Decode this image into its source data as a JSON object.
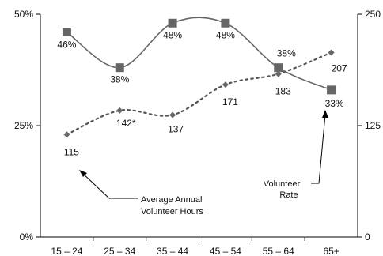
{
  "chart_data": {
    "type": "line",
    "categories": [
      "15 – 24",
      "25 – 34",
      "35 – 44",
      "45 – 54",
      "55 – 64",
      "65+"
    ],
    "y_left": {
      "ticks": [
        "0%",
        "25%",
        "50%"
      ],
      "range": [
        0,
        50
      ]
    },
    "y_right": {
      "ticks": [
        "0",
        "125",
        "250"
      ],
      "range": [
        0,
        250
      ]
    },
    "series": [
      {
        "key": "rate",
        "axis": "left",
        "marker": "square",
        "style": "solid",
        "color": "#666666",
        "values": [
          46,
          38,
          48,
          48,
          38,
          33
        ],
        "labels": [
          "46%",
          "38%",
          "48%",
          "48%",
          "38%",
          "33%"
        ]
      },
      {
        "key": "hours",
        "axis": "right",
        "marker": "diamond",
        "style": "dotted",
        "color": "#555555",
        "values": [
          115,
          142,
          137,
          171,
          183,
          207
        ],
        "labels": [
          "115",
          "142*",
          "137",
          "171",
          "183",
          "207"
        ]
      }
    ],
    "annotations": [
      {
        "key": "hours_note",
        "lines": [
          "Average Annual",
          "Volunteer Hours"
        ]
      },
      {
        "key": "rate_note",
        "lines": [
          "Volunteer",
          "Rate"
        ]
      }
    ],
    "grid": false,
    "legend": "none"
  }
}
